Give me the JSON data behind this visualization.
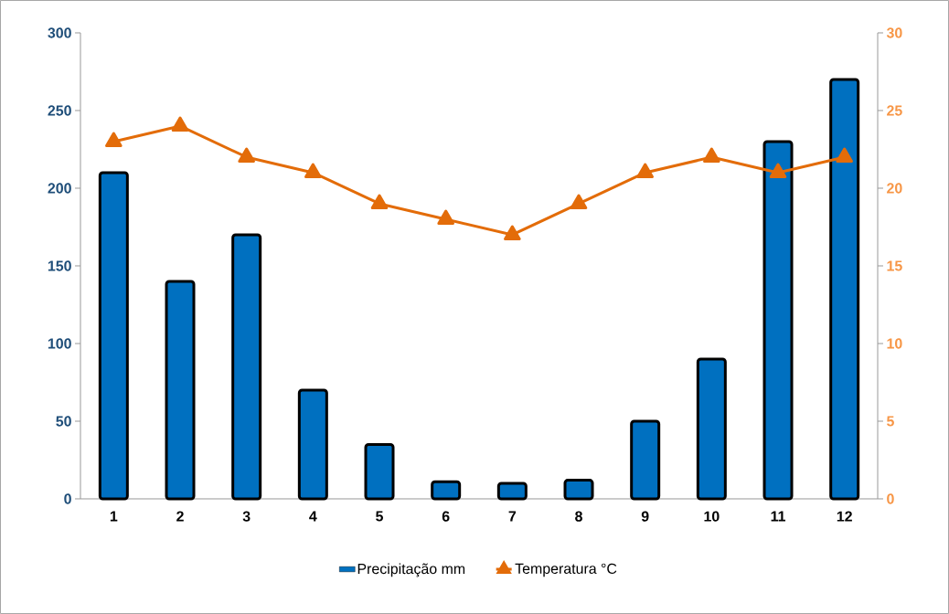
{
  "chart_data": {
    "type": "bar",
    "categories": [
      "1",
      "2",
      "3",
      "4",
      "5",
      "6",
      "7",
      "8",
      "9",
      "10",
      "11",
      "12"
    ],
    "series": [
      {
        "name": "Precipitação mm",
        "color": "#0070c0",
        "values": [
          210,
          140,
          170,
          70,
          35,
          11,
          10,
          12,
          50,
          90,
          230,
          270
        ]
      },
      {
        "name": "Temperatura °C",
        "type": "line",
        "axis": "y2",
        "color": "#e36c09",
        "marker": "triangle",
        "values": [
          23,
          24,
          22,
          21,
          19,
          18,
          17,
          19,
          21,
          22,
          21,
          22
        ]
      }
    ],
    "ylim": [
      0,
      300
    ],
    "yticks": [
      0,
      50,
      100,
      150,
      200,
      250,
      300
    ],
    "y2lim": [
      0,
      30
    ],
    "y2ticks": [
      0,
      5,
      10,
      15,
      20,
      25,
      30
    ],
    "grid": false,
    "legend": "bottom"
  }
}
